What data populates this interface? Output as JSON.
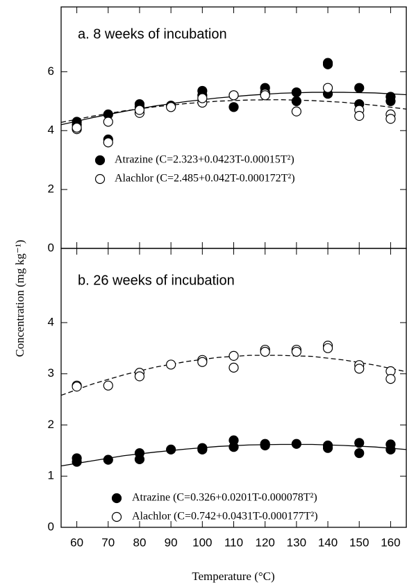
{
  "chart_data": [
    {
      "type": "scatter",
      "title": "a. 8 weeks of incubation",
      "ylabel": "Concentration (mg kg⁻¹)",
      "xlim": [
        55,
        165
      ],
      "ylim": [
        0,
        8.2
      ],
      "yticks": [
        0,
        2,
        4,
        6
      ],
      "fit_x": [
        55,
        65,
        75,
        85,
        95,
        105,
        115,
        125,
        135,
        145,
        155,
        165
      ],
      "series": [
        {
          "name": "Atrazine (C=2.323+0.0423T-0.00015T²)",
          "color": "#000000",
          "marker": "filled",
          "x": [
            60,
            60,
            70,
            70,
            80,
            80,
            90,
            100,
            100,
            110,
            110,
            120,
            120,
            130,
            130,
            140,
            140,
            140,
            150,
            150,
            160,
            160
          ],
          "values": [
            4.3,
            4.2,
            4.55,
            3.7,
            4.9,
            4.8,
            4.85,
            5.35,
            5.2,
            5.2,
            4.8,
            5.45,
            5.3,
            5.3,
            5.0,
            6.3,
            6.25,
            5.25,
            5.45,
            4.9,
            5.15,
            5.0
          ],
          "fit": {
            "dashed": false,
            "values": [
              4.2,
              4.44,
              4.65,
              4.84,
              4.99,
              5.11,
              5.2,
              5.27,
              5.3,
              5.3,
              5.28,
              5.22
            ]
          }
        },
        {
          "name": "Alachlor (C=2.485+0.042T-0.000172T²)",
          "color": "#000000",
          "marker": "open",
          "x": [
            60,
            60,
            70,
            70,
            80,
            80,
            90,
            100,
            100,
            110,
            120,
            120,
            130,
            140,
            150,
            150,
            160,
            160
          ],
          "values": [
            4.05,
            4.1,
            4.3,
            3.6,
            4.6,
            4.7,
            4.8,
            4.95,
            5.1,
            5.2,
            5.25,
            5.2,
            4.65,
            5.45,
            4.7,
            4.5,
            4.55,
            4.4
          ],
          "fit": {
            "dashed": true,
            "values": [
              4.28,
              4.49,
              4.67,
              4.81,
              4.92,
              5.0,
              5.04,
              5.05,
              5.02,
              4.96,
              4.86,
              4.73
            ]
          }
        }
      ]
    },
    {
      "type": "scatter",
      "title": "b.  26 weeks of incubation",
      "xlabel": "Temperature (°C)",
      "xlim": [
        55,
        165
      ],
      "xticks": [
        60,
        70,
        80,
        90,
        100,
        110,
        120,
        130,
        140,
        150,
        160
      ],
      "ylim": [
        0,
        5.45
      ],
      "yticks": [
        0,
        1,
        2,
        3,
        4
      ],
      "fit_x": [
        55,
        65,
        75,
        85,
        95,
        105,
        115,
        125,
        135,
        145,
        155,
        165
      ],
      "series": [
        {
          "name": "Atrazine (C=0.326+0.0201T-0.000078T²)",
          "color": "#000000",
          "marker": "filled",
          "x": [
            60,
            60,
            70,
            80,
            80,
            90,
            100,
            100,
            110,
            110,
            120,
            120,
            130,
            140,
            140,
            150,
            150,
            160,
            160
          ],
          "values": [
            1.35,
            1.28,
            1.32,
            1.45,
            1.33,
            1.52,
            1.55,
            1.52,
            1.7,
            1.57,
            1.63,
            1.6,
            1.63,
            1.6,
            1.55,
            1.65,
            1.45,
            1.62,
            1.52
          ],
          "fit": {
            "dashed": false,
            "values": [
              1.2,
              1.3,
              1.4,
              1.47,
              1.53,
              1.58,
              1.61,
              1.62,
              1.62,
              1.6,
              1.57,
              1.52
            ]
          }
        },
        {
          "name": "Alachlor (C=0.742+0.0431T-0.000177T²)",
          "color": "#000000",
          "marker": "open",
          "x": [
            60,
            60,
            70,
            80,
            80,
            90,
            100,
            100,
            110,
            110,
            120,
            120,
            130,
            130,
            140,
            140,
            150,
            150,
            160,
            160
          ],
          "values": [
            2.77,
            2.75,
            2.77,
            3.02,
            2.95,
            3.18,
            3.27,
            3.23,
            3.35,
            3.12,
            3.47,
            3.43,
            3.47,
            3.43,
            3.55,
            3.5,
            3.17,
            3.1,
            3.05,
            2.9
          ],
          "fit": {
            "dashed": true,
            "values": [
              2.58,
              2.8,
              2.98,
              3.13,
              3.24,
              3.32,
              3.36,
              3.36,
              3.34,
              3.27,
              3.17,
              3.04
            ]
          }
        }
      ]
    }
  ]
}
